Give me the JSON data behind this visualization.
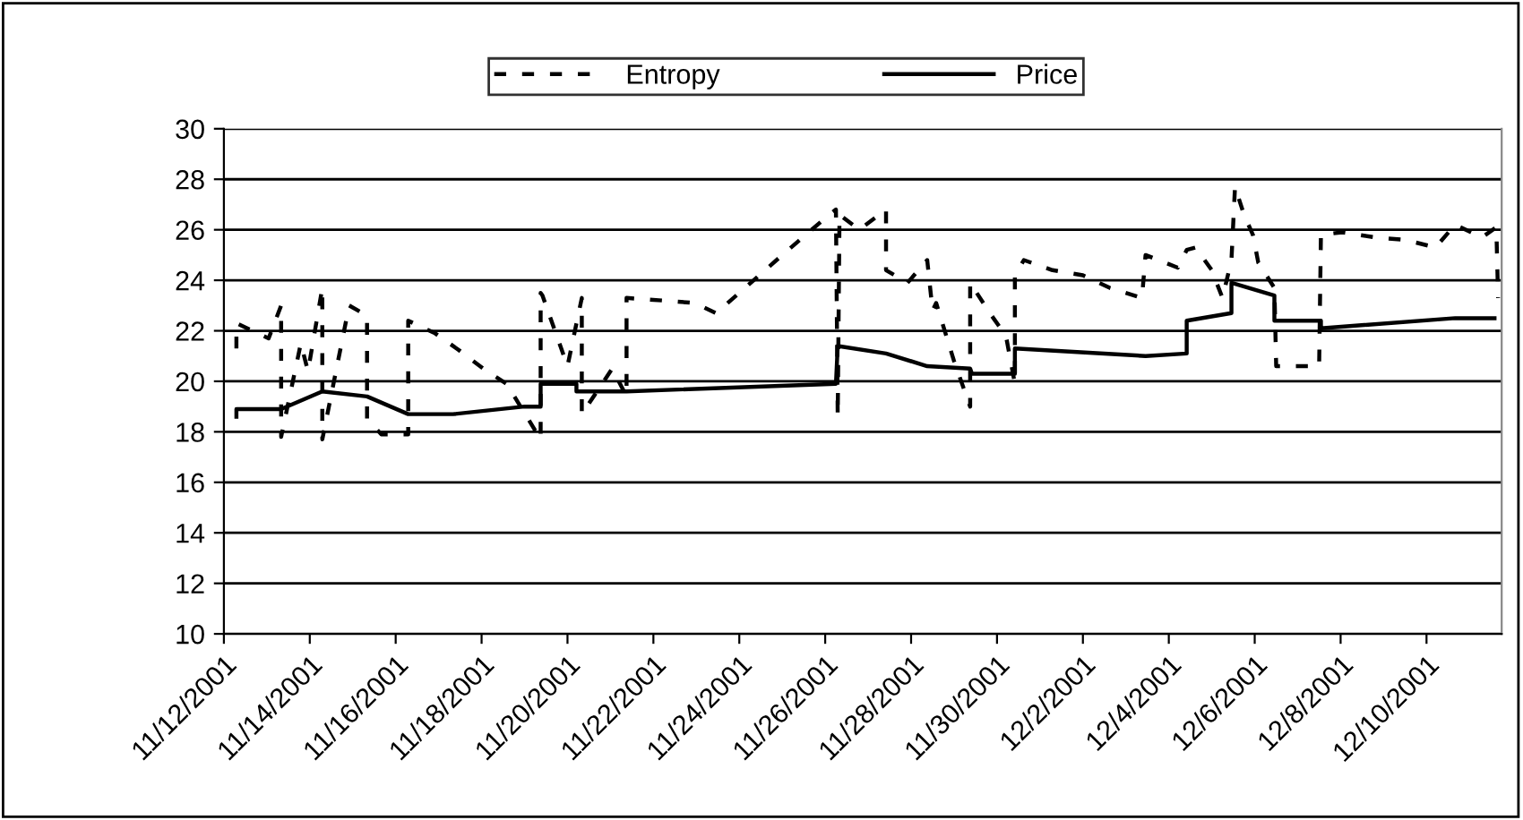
{
  "chart_data": {
    "type": "line",
    "legend": "top",
    "grid": "y",
    "marker": "none",
    "ylim": [
      10,
      30
    ],
    "yticks": [
      10,
      12,
      14,
      16,
      18,
      20,
      22,
      24,
      26,
      28,
      30
    ],
    "xlim": [
      "2001-11-12",
      "2001-12-11T18:00"
    ],
    "xticks": [
      {
        "value": "2001-11-12",
        "label": "11/12/2001"
      },
      {
        "value": "2001-11-14",
        "label": "11/14/2001"
      },
      {
        "value": "2001-11-16",
        "label": "11/16/2001"
      },
      {
        "value": "2001-11-18",
        "label": "11/18/2001"
      },
      {
        "value": "2001-11-20",
        "label": "11/20/2001"
      },
      {
        "value": "2001-11-22",
        "label": "11/22/2001"
      },
      {
        "value": "2001-11-24",
        "label": "11/24/2001"
      },
      {
        "value": "2001-11-26",
        "label": "11/26/2001"
      },
      {
        "value": "2001-11-28",
        "label": "11/28/2001"
      },
      {
        "value": "2001-11-30",
        "label": "11/30/2001"
      },
      {
        "value": "2001-12-02",
        "label": "12/2/2001"
      },
      {
        "value": "2001-12-04",
        "label": "12/4/2001"
      },
      {
        "value": "2001-12-06",
        "label": "12/6/2001"
      },
      {
        "value": "2001-12-08",
        "label": "12/8/2001"
      },
      {
        "value": "2001-12-10",
        "label": "12/10/2001"
      }
    ],
    "series": [
      {
        "name": "Entropy",
        "color": "#000000",
        "line_style": "dashed",
        "x": [
          "2001-11-12T07:00",
          "2001-11-12T07:00",
          "2001-11-13T01:00",
          "2001-11-13T08:00",
          "2001-11-13T08:00",
          "2001-11-13T19:00",
          "2001-11-13T23:00",
          "2001-11-14T07:00",
          "2001-11-14T07:00",
          "2001-11-14T22:00",
          "2001-11-15T08:00",
          "2001-11-15T08:00",
          "2001-11-15T16:00",
          "2001-11-16T07:00",
          "2001-11-16T07:00",
          "2001-11-16T22:00",
          "2001-11-17T12:00",
          "2001-11-18T01:00",
          "2001-11-18T14:00",
          "2001-11-19T09:00",
          "2001-11-19T09:00",
          "2001-11-19T10:00",
          "2001-11-20T00:00",
          "2001-11-20T08:00",
          "2001-11-20T08:00",
          "2001-11-21T01:00",
          "2001-11-21T09:00",
          "2001-11-21T09:00",
          "2001-11-22T05:00",
          "2001-11-22T23:00",
          "2001-11-23T11:00",
          "2001-11-24T00:00",
          "2001-11-25T00:00",
          "2001-11-25T23:00",
          "2001-11-26T06:00",
          "2001-11-26T07:00",
          "2001-11-26T08:00",
          "2001-11-26T19:00",
          "2001-11-27T10:00",
          "2001-11-27T10:00",
          "2001-11-27T22:00",
          "2001-11-28T09:00",
          "2001-11-28T12:00",
          "2001-11-28T14:00",
          "2001-11-29T00:00",
          "2001-11-29T09:00",
          "2001-11-29T09:00",
          "2001-11-29T20:00",
          "2001-11-30T05:00",
          "2001-11-30T10:00",
          "2001-11-30T10:00",
          "2001-11-30T15:00",
          "2001-12-01T07:00",
          "2001-12-02T00:00",
          "2001-12-02T15:00",
          "2001-12-03T09:00",
          "2001-12-03T11:00",
          "2001-12-04T05:00",
          "2001-12-04T10:00",
          "2001-12-04T15:00",
          "2001-12-05T00:00",
          "2001-12-05T06:00",
          "2001-12-05T11:00",
          "2001-12-05T13:00",
          "2001-12-05T18:00",
          "2001-12-05T23:00",
          "2001-12-06T02:00",
          "2001-12-06T11:00",
          "2001-12-06T12:00",
          "2001-12-07T12:00",
          "2001-12-07T13:00",
          "2001-12-08T01:00",
          "2001-12-08T19:00",
          "2001-12-09T12:00",
          "2001-12-10T05:00",
          "2001-12-10T16:00",
          "2001-12-11T07:00",
          "2001-12-11T15:00",
          "2001-12-11T16:00"
        ],
        "values": [
          21.3,
          22.3,
          21.7,
          23.0,
          17.8,
          21.5,
          20.4,
          23.7,
          17.7,
          23.0,
          22.6,
          18.5,
          17.9,
          17.9,
          22.4,
          21.9,
          21.2,
          20.5,
          19.9,
          17.7,
          23.5,
          23.4,
          20.6,
          23.3,
          18.7,
          20.5,
          19.4,
          23.3,
          23.2,
          23.1,
          22.7,
          23.5,
          25.0,
          26.4,
          26.8,
          18.6,
          26.6,
          26.0,
          26.8,
          24.4,
          23.9,
          24.8,
          22.8,
          23.1,
          20.8,
          19.0,
          23.9,
          22.7,
          21.8,
          19.9,
          24.2,
          24.8,
          24.4,
          24.2,
          23.7,
          23.3,
          25.0,
          24.5,
          25.2,
          25.3,
          24.4,
          23.3,
          24.8,
          27.7,
          26.6,
          25.8,
          24.7,
          23.7,
          20.6,
          20.6,
          25.8,
          25.9,
          25.7,
          25.6,
          25.3,
          26.2,
          25.7,
          26.1,
          23.3
        ]
      },
      {
        "name": "Price",
        "color": "#000000",
        "line_style": "solid",
        "x": [
          "2001-11-12T07:00",
          "2001-11-12T07:00",
          "2001-11-13T08:00",
          "2001-11-14T07:00",
          "2001-11-15T08:00",
          "2001-11-16T07:00",
          "2001-11-17T08:00",
          "2001-11-19T00:00",
          "2001-11-19T09:00",
          "2001-11-19T09:00",
          "2001-11-20T05:00",
          "2001-11-20T05:00",
          "2001-11-21T09:00",
          "2001-11-26T06:00",
          "2001-11-26T07:00",
          "2001-11-27T10:00",
          "2001-11-28T09:00",
          "2001-11-29T09:00",
          "2001-11-29T10:00",
          "2001-11-30T10:00",
          "2001-11-30T10:00",
          "2001-12-03T11:00",
          "2001-12-04T10:00",
          "2001-12-04T10:00",
          "2001-12-05T11:00",
          "2001-12-05T11:00",
          "2001-12-06T11:00",
          "2001-12-06T11:00",
          "2001-12-07T13:00",
          "2001-12-07T13:00",
          "2001-12-10T16:00",
          "2001-12-11T14:00"
        ],
        "values": [
          18.6,
          18.9,
          18.9,
          19.6,
          19.4,
          18.7,
          18.7,
          19.0,
          19.0,
          19.9,
          19.9,
          19.6,
          19.6,
          19.9,
          21.4,
          21.1,
          20.6,
          20.5,
          20.3,
          20.3,
          21.3,
          21.0,
          21.1,
          22.4,
          22.7,
          23.9,
          23.4,
          22.4,
          22.4,
          22.1,
          22.5,
          22.5
        ]
      }
    ]
  }
}
